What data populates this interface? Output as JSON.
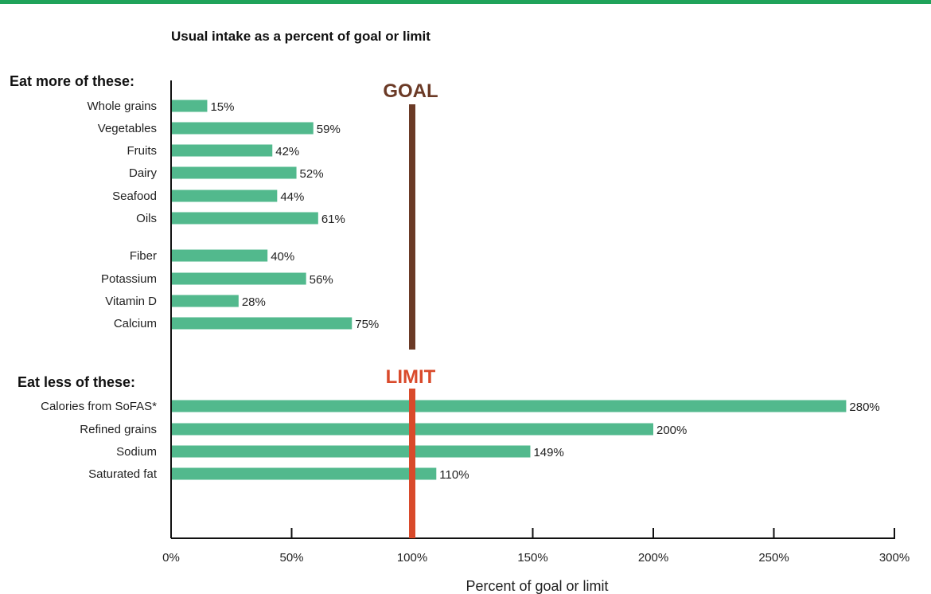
{
  "chart_data": {
    "type": "bar",
    "orientation": "horizontal",
    "title": "Usual intake as a percent of goal or limit",
    "xlabel": "Percent of goal or limit",
    "xlim": [
      0,
      300
    ],
    "xticks": [
      0,
      50,
      100,
      150,
      200,
      250,
      300
    ],
    "tick_format": "%",
    "bar_color": "#52b98d",
    "groups": [
      {
        "label": "Eat more of these:",
        "reference": {
          "label": "GOAL",
          "value": 100,
          "color": "#6b3a26"
        },
        "categories": [
          "Whole grains",
          "Vegetables",
          "Fruits",
          "Dairy",
          "Seafood",
          "Oils",
          "Fiber",
          "Potassium",
          "Vitamin D",
          "Calcium"
        ],
        "values": [
          15,
          59,
          42,
          52,
          44,
          61,
          40,
          56,
          28,
          75
        ]
      },
      {
        "label": "Eat less of these:",
        "reference": {
          "label": "LIMIT",
          "value": 100,
          "color": "#d94a2b"
        },
        "categories": [
          "Calories from SoFAS*",
          "Refined grains",
          "Sodium",
          "Saturated fat"
        ],
        "values": [
          280,
          200,
          149,
          110
        ]
      }
    ]
  }
}
